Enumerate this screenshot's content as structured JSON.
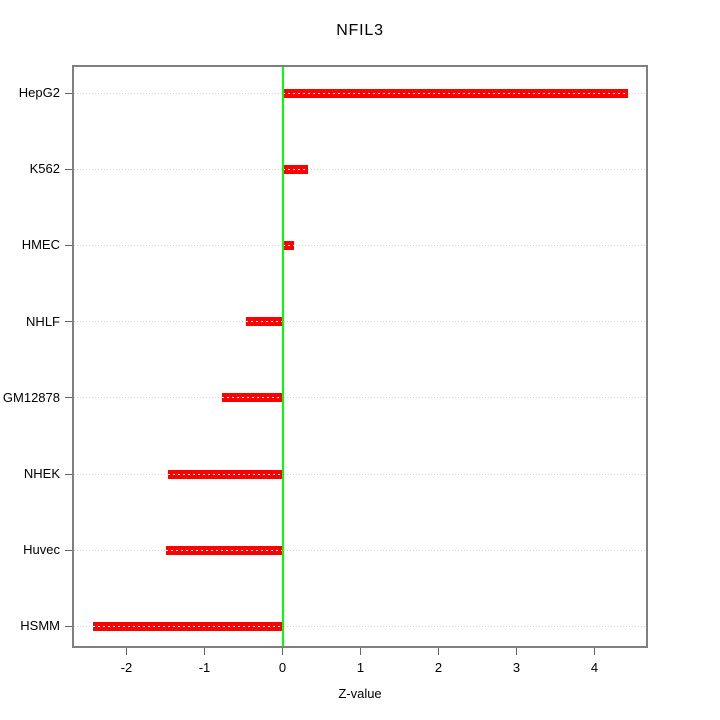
{
  "chart_data": {
    "type": "bar",
    "orientation": "horizontal",
    "title": "NFIL3",
    "xlabel": "Z-value",
    "categories": [
      "HepG2",
      "K562",
      "HMEC",
      "NHLF",
      "GM12878",
      "NHEK",
      "Huvec",
      "HSMM"
    ],
    "values": [
      4.43,
      0.33,
      0.15,
      -0.47,
      -0.78,
      -1.47,
      -1.5,
      -2.43
    ],
    "x_ticks": [
      -2,
      -1,
      0,
      1,
      2,
      3,
      4
    ],
    "xlim": [
      -2.7,
      4.67
    ],
    "zero_line_x": 0,
    "grid": "horizontal-dotted-per-category",
    "legend": "none",
    "colors": {
      "bar": "#ff0000",
      "bar_center_dash": "#ffffff",
      "zero_line": "#00ff00",
      "gridline": "#d4d4d4",
      "plot_border": "#7f7f7f",
      "tick": "#666666",
      "text": "#000000",
      "background": "#ffffff"
    }
  }
}
